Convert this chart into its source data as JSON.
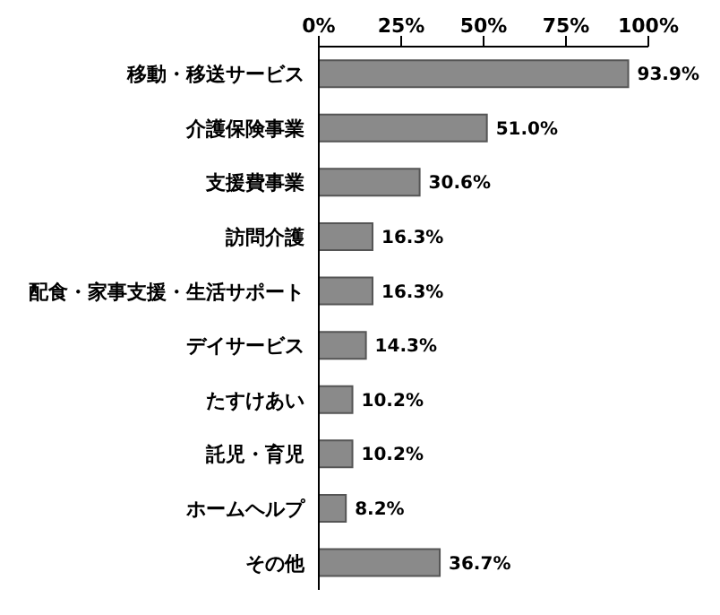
{
  "chart_data": {
    "type": "bar",
    "orientation": "horizontal",
    "categories": [
      "移動・移送サービス",
      "介護保険事業",
      "支援費事業",
      "訪問介護",
      "配食・家事支援・生活サポート",
      "デイサービス",
      "たすけあい",
      "託児・育児",
      "ホームヘルプ",
      "その他"
    ],
    "values": [
      93.9,
      51.0,
      30.6,
      16.3,
      16.3,
      14.3,
      10.2,
      10.2,
      8.2,
      36.7
    ],
    "value_labels": [
      "93.9%",
      "51.0%",
      "30.6%",
      "16.3%",
      "16.3%",
      "14.3%",
      "10.2%",
      "10.2%",
      "8.2%",
      "36.7%"
    ],
    "color": "#8a8a8a",
    "xlim": [
      0,
      100
    ],
    "xticks": [
      {
        "value": 0,
        "label": "0%"
      },
      {
        "value": 25,
        "label": "25%"
      },
      {
        "value": 50,
        "label": "50%"
      },
      {
        "value": 75,
        "label": "75%"
      },
      {
        "value": 100,
        "label": "100%"
      }
    ],
    "grid": false
  }
}
